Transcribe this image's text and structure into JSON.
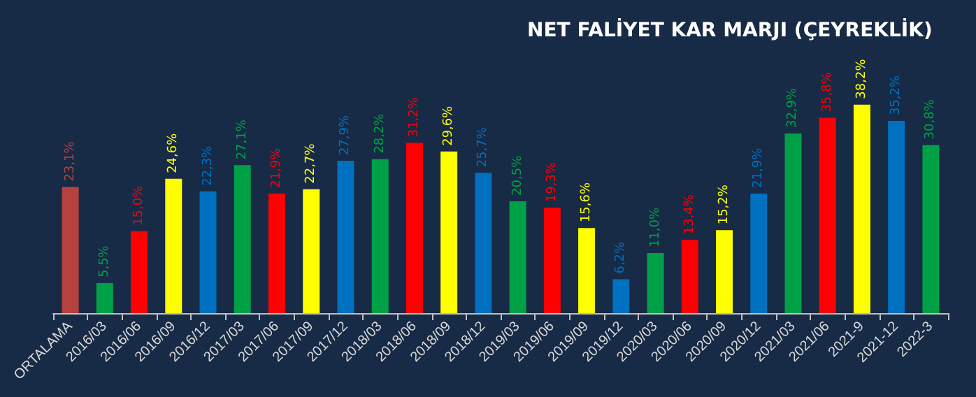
{
  "chart_data": {
    "type": "bar",
    "title": "NET FALİYET KAR MARJI (ÇEYREKLİK)",
    "categories": [
      "ORTALAMA",
      "2016/03",
      "2016/06",
      "2016/09",
      "2016/12",
      "2017/03",
      "2017/06",
      "2017/09",
      "2017/12",
      "2018/03",
      "2018/06",
      "2018/09",
      "2018/12",
      "2019/03",
      "2019/06",
      "2019/09",
      "2019/12",
      "2020/03",
      "2020/06",
      "2020/09",
      "2020/12",
      "2021/03",
      "2021/06",
      "2021-9",
      "2021-12",
      "2022-3"
    ],
    "values": [
      23.1,
      5.5,
      15.0,
      24.6,
      22.3,
      27.1,
      21.9,
      22.7,
      27.9,
      28.2,
      31.2,
      29.6,
      25.7,
      20.5,
      19.3,
      15.6,
      6.2,
      11.0,
      13.4,
      15.2,
      21.9,
      32.9,
      35.8,
      38.2,
      35.2,
      30.8
    ],
    "value_labels": [
      "23,1%",
      "5,5%",
      "15,0%",
      "24,6%",
      "22,3%",
      "27,1%",
      "21,9%",
      "22,7%",
      "27,9%",
      "28,2%",
      "31,2%",
      "29,6%",
      "25,7%",
      "20,5%",
      "19,3%",
      "15,6%",
      "6,2%",
      "11,0%",
      "13,4%",
      "15,2%",
      "21,9%",
      "32,9%",
      "35,8%",
      "38,2%",
      "35,2%",
      "30,8%"
    ],
    "colors": [
      "#b5423f",
      "#00a146",
      "#ff0000",
      "#ffff00",
      "#0070c0",
      "#00a146",
      "#ff0000",
      "#ffff00",
      "#0070c0",
      "#00a146",
      "#ff0000",
      "#ffff00",
      "#0070c0",
      "#00a146",
      "#ff0000",
      "#ffff00",
      "#0070c0",
      "#00a146",
      "#ff0000",
      "#ffff00",
      "#0070c0",
      "#00a146",
      "#ff0000",
      "#ffff00",
      "#0070c0",
      "#00a146"
    ]
  }
}
